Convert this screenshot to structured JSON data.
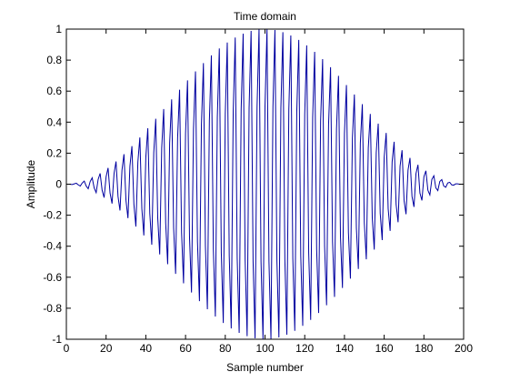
{
  "chart_data": {
    "type": "line",
    "title": "Time domain",
    "xlabel": "Sample number",
    "ylabel": "Amplitude",
    "xlim": [
      0,
      200
    ],
    "ylim": [
      -1,
      1
    ],
    "xticks": [
      0,
      20,
      40,
      60,
      80,
      100,
      120,
      140,
      160,
      180,
      200
    ],
    "yticks": [
      -1,
      -0.8,
      -0.6,
      -0.4,
      -0.2,
      0,
      0.2,
      0.4,
      0.6,
      0.8,
      1
    ],
    "xtick_labels": [
      "0",
      "20",
      "40",
      "60",
      "80",
      "100",
      "120",
      "140",
      "160",
      "180",
      "200"
    ],
    "ytick_labels": [
      "-1",
      "-0.8",
      "-0.6",
      "-0.4",
      "-0.2",
      "0",
      "0.2",
      "0.4",
      "0.6",
      "0.8",
      "1"
    ],
    "grid": false,
    "series": [
      {
        "color": "#0000a0",
        "x_start": 0,
        "x_end": 200,
        "x_step": 1,
        "signal": "Hann-windowed oscillation, 2 samples per cycle; envelope peaks ~1.0 on odd samples and ~0.5 on even samples",
        "envelope_odd_peak": 1.0,
        "envelope_even_peak": 0.5
      }
    ]
  }
}
